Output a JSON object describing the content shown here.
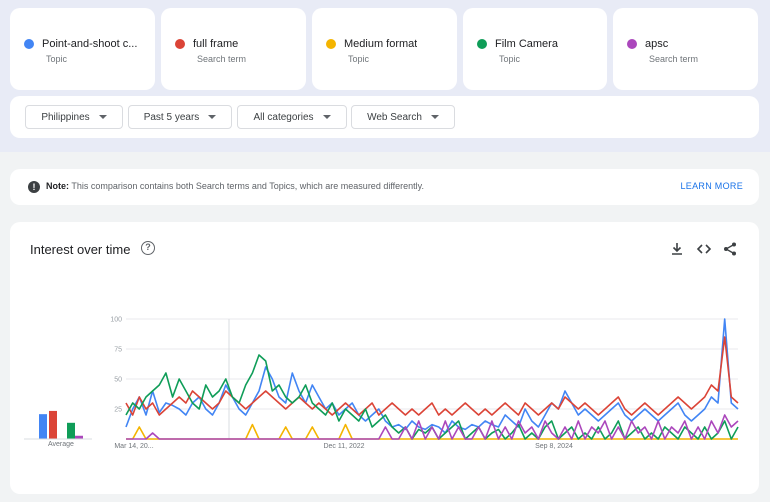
{
  "terms": [
    {
      "name": "Point-and-shoot c...",
      "type": "Topic",
      "color": "#4285f4"
    },
    {
      "name": "full frame",
      "type": "Search term",
      "color": "#db4437"
    },
    {
      "name": "Medium format",
      "type": "Topic",
      "color": "#f4b400"
    },
    {
      "name": "Film Camera",
      "type": "Topic",
      "color": "#0f9d58"
    },
    {
      "name": "apsc",
      "type": "Search term",
      "color": "#ab47bc"
    }
  ],
  "filters": [
    {
      "label": "Philippines"
    },
    {
      "label": "Past 5 years"
    },
    {
      "label": "All categories"
    },
    {
      "label": "Web Search"
    }
  ],
  "note": {
    "label": "Note:",
    "text": " This comparison contains both Search terms and Topics, which are measured differently.",
    "action": "LEARN MORE"
  },
  "chart": {
    "title": "Interest over time",
    "avg_label": "Average",
    "icons": [
      "help-icon",
      "download-icon",
      "embed-icon",
      "share-icon"
    ]
  },
  "chart_data": {
    "type": "line",
    "ylim": [
      0,
      100
    ],
    "y_ticks": [
      "100",
      "75",
      "50",
      "25"
    ],
    "x_ticks": [
      "Mar 14, 20...",
      "Dec 11, 2022",
      "Sep 8, 2024"
    ],
    "averages": [
      {
        "series": "Point-and-shoot c...",
        "value": 23
      },
      {
        "series": "full frame",
        "value": 26
      },
      {
        "series": "Medium format",
        "value": 0
      },
      {
        "series": "Film Camera",
        "value": 15
      },
      {
        "series": "apsc",
        "value": 3
      }
    ],
    "series": [
      {
        "name": "Point-and-shoot c...",
        "color": "#4285f4",
        "values": [
          10,
          25,
          35,
          20,
          40,
          22,
          30,
          28,
          25,
          20,
          30,
          35,
          25,
          20,
          30,
          45,
          35,
          25,
          20,
          30,
          40,
          60,
          50,
          35,
          30,
          55,
          40,
          30,
          45,
          35,
          25,
          30,
          20,
          25,
          30,
          20,
          15,
          20,
          25,
          15,
          10,
          12,
          8,
          15,
          10,
          8,
          12,
          10,
          5,
          15,
          10,
          8,
          12,
          10,
          15,
          12,
          10,
          20,
          15,
          10,
          25,
          15,
          10,
          20,
          30,
          25,
          40,
          30,
          20,
          25,
          20,
          15,
          20,
          25,
          30,
          20,
          15,
          20,
          25,
          20,
          15,
          20,
          25,
          30,
          20,
          15,
          20,
          25,
          35,
          30,
          100,
          30,
          25
        ]
      },
      {
        "name": "full frame",
        "color": "#db4437",
        "values": [
          30,
          20,
          35,
          25,
          30,
          20,
          25,
          30,
          35,
          30,
          40,
          35,
          30,
          25,
          30,
          40,
          35,
          30,
          25,
          30,
          35,
          40,
          35,
          30,
          25,
          30,
          35,
          30,
          25,
          30,
          25,
          20,
          25,
          30,
          25,
          20,
          25,
          30,
          20,
          25,
          30,
          25,
          20,
          25,
          20,
          25,
          30,
          20,
          25,
          20,
          25,
          30,
          25,
          20,
          25,
          20,
          25,
          30,
          25,
          20,
          30,
          25,
          20,
          25,
          30,
          25,
          35,
          30,
          25,
          30,
          25,
          20,
          25,
          30,
          35,
          25,
          20,
          25,
          30,
          25,
          20,
          25,
          30,
          35,
          30,
          25,
          30,
          35,
          45,
          40,
          85,
          35,
          30
        ]
      },
      {
        "name": "Medium format",
        "color": "#f4b400",
        "values": [
          0,
          0,
          10,
          0,
          0,
          0,
          0,
          0,
          0,
          0,
          0,
          0,
          0,
          0,
          0,
          0,
          0,
          0,
          0,
          12,
          0,
          0,
          0,
          0,
          10,
          0,
          0,
          0,
          10,
          0,
          0,
          0,
          0,
          12,
          0,
          0,
          0,
          0,
          0,
          0,
          0,
          0,
          0,
          0,
          0,
          0,
          0,
          0,
          0,
          0,
          0,
          0,
          0,
          0,
          0,
          0,
          0,
          0,
          0,
          0,
          0,
          0,
          0,
          0,
          0,
          0,
          0,
          0,
          0,
          0,
          0,
          0,
          0,
          0,
          0,
          0,
          0,
          0,
          0,
          0,
          0,
          0,
          0,
          0,
          0,
          0,
          0,
          0,
          0,
          0,
          0,
          0,
          0
        ]
      },
      {
        "name": "Film Camera",
        "color": "#0f9d58",
        "values": [
          20,
          30,
          25,
          35,
          40,
          45,
          55,
          35,
          50,
          40,
          30,
          25,
          45,
          35,
          40,
          50,
          35,
          30,
          45,
          55,
          70,
          65,
          40,
          45,
          35,
          30,
          35,
          45,
          30,
          25,
          20,
          30,
          15,
          25,
          20,
          15,
          25,
          10,
          15,
          20,
          10,
          5,
          10,
          0,
          8,
          5,
          10,
          0,
          5,
          10,
          15,
          0,
          5,
          10,
          0,
          5,
          8,
          0,
          5,
          12,
          0,
          5,
          0,
          10,
          15,
          0,
          5,
          10,
          0,
          5,
          0,
          10,
          0,
          5,
          15,
          0,
          5,
          10,
          0,
          5,
          0,
          10,
          5,
          0,
          10,
          5,
          0,
          10,
          0,
          5,
          15,
          0,
          10
        ]
      },
      {
        "name": "apsc",
        "color": "#ab47bc",
        "values": [
          0,
          0,
          0,
          0,
          5,
          0,
          0,
          0,
          0,
          0,
          0,
          0,
          0,
          0,
          0,
          0,
          0,
          0,
          0,
          0,
          0,
          0,
          0,
          0,
          0,
          0,
          0,
          0,
          0,
          0,
          0,
          0,
          0,
          0,
          0,
          0,
          0,
          0,
          0,
          10,
          0,
          0,
          10,
          0,
          15,
          0,
          10,
          0,
          15,
          0,
          10,
          0,
          0,
          10,
          0,
          15,
          0,
          10,
          0,
          15,
          5,
          10,
          0,
          15,
          5,
          0,
          10,
          0,
          15,
          0,
          10,
          5,
          15,
          0,
          10,
          0,
          15,
          5,
          10,
          0,
          15,
          0,
          10,
          5,
          15,
          0,
          10,
          0,
          15,
          5,
          20,
          10,
          15
        ]
      }
    ]
  }
}
